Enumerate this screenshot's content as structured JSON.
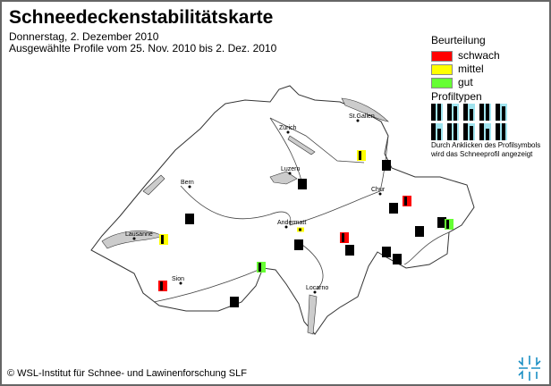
{
  "header": {
    "title": "Schneedeckenstabilitätskarte",
    "date": "Donnerstag, 2. Dezember 2010",
    "range": "Ausgewählte Profile vom 25. Nov. 2010 bis 2. Dez. 2010"
  },
  "legend": {
    "title": "Beurteilung",
    "items": [
      {
        "label": "schwach",
        "color": "#ff0000"
      },
      {
        "label": "mittel",
        "color": "#ffff00"
      },
      {
        "label": "gut",
        "color": "#66ff33"
      }
    ]
  },
  "profile_types": {
    "title": "Profiltypen",
    "count": 10,
    "note_line1": "Durch Anklicken des Profilsymbols",
    "note_line2": "wird das Schneeprofil angezeigt"
  },
  "cities": [
    "Zürich",
    "St.Gallen",
    "Luzern",
    "Bern",
    "Chur",
    "Andermatt",
    "Lausanne",
    "Sion",
    "Locarno"
  ],
  "profiles": [
    "mittel",
    "none",
    "none",
    "schwach",
    "none",
    "none",
    "none",
    "gut",
    "mittel",
    "mittel",
    "schwach",
    "none",
    "none",
    "none",
    "none",
    "none",
    "gut",
    "schwach",
    "none"
  ],
  "footer": {
    "copyright": "© WSL-Institut für Schnee- und Lawinenforschung SLF",
    "logo_text": "SLF"
  }
}
